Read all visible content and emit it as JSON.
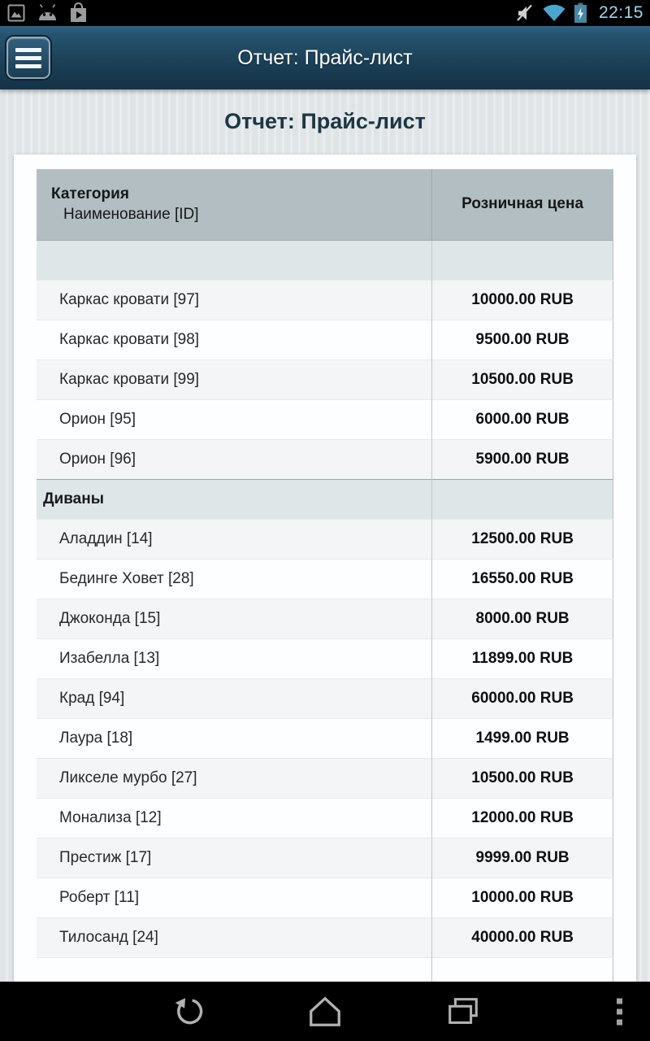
{
  "status_bar": {
    "time": "22:15",
    "left_icons": [
      "screenshot-icon",
      "android-debug-icon",
      "play-store-icon"
    ],
    "right_icons": [
      "mute-icon",
      "wifi-icon",
      "battery-charging-icon"
    ]
  },
  "action_bar": {
    "title": "Отчет: Прайс-лист",
    "menu_button": "hamburger-menu"
  },
  "page": {
    "heading": "Отчет: Прайс-лист"
  },
  "table": {
    "header": {
      "category_label": "Категория",
      "item_label": "Наименование [ID]",
      "price_label": "Розничная цена"
    },
    "rows": [
      {
        "type": "category",
        "name": "",
        "price": ""
      },
      {
        "type": "item",
        "name": "Каркас кровати [97]",
        "price": "10000.00 RUB"
      },
      {
        "type": "item",
        "name": "Каркас кровати [98]",
        "price": "9500.00 RUB"
      },
      {
        "type": "item",
        "name": "Каркас кровати [99]",
        "price": "10500.00 RUB"
      },
      {
        "type": "item",
        "name": "Орион [95]",
        "price": "6000.00 RUB"
      },
      {
        "type": "item",
        "name": "Орион [96]",
        "price": "5900.00 RUB"
      },
      {
        "type": "category",
        "name": "Диваны",
        "price": ""
      },
      {
        "type": "item",
        "name": "Аладдин [14]",
        "price": "12500.00 RUB"
      },
      {
        "type": "item",
        "name": "Бединге Ховет [28]",
        "price": "16550.00 RUB"
      },
      {
        "type": "item",
        "name": "Джоконда [15]",
        "price": "8000.00 RUB"
      },
      {
        "type": "item",
        "name": "Изабелла [13]",
        "price": "11899.00 RUB"
      },
      {
        "type": "item",
        "name": "Крад [94]",
        "price": "60000.00 RUB"
      },
      {
        "type": "item",
        "name": "Лаура [18]",
        "price": "1499.00 RUB"
      },
      {
        "type": "item",
        "name": "Ликселе мурбо [27]",
        "price": "10500.00 RUB"
      },
      {
        "type": "item",
        "name": "Монализа [12]",
        "price": "12000.00 RUB"
      },
      {
        "type": "item",
        "name": "Престиж [17]",
        "price": "9999.00 RUB"
      },
      {
        "type": "item",
        "name": "Роберт [11]",
        "price": "10000.00 RUB"
      },
      {
        "type": "item",
        "name": "Тилосанд [24]",
        "price": "40000.00 RUB"
      },
      {
        "type": "item",
        "name": "",
        "price": ""
      }
    ]
  },
  "nav_bar": {
    "icons": [
      "back-icon",
      "home-icon",
      "recents-icon",
      "overflow-menu-icon"
    ]
  },
  "colors": {
    "status_time": "#9ed7ec",
    "wifi_blue": "#4aa6cf",
    "battery_blue": "#4886a6",
    "action_bar_top": "#2f6384",
    "action_bar_bottom": "#153248",
    "heading_text": "#1d3642",
    "table_header_bg": "#b3bec2",
    "category_row_bg": "#dfe6e8",
    "row_odd_bg": "#f3f5f6",
    "row_even_bg": "#fdfeff"
  }
}
